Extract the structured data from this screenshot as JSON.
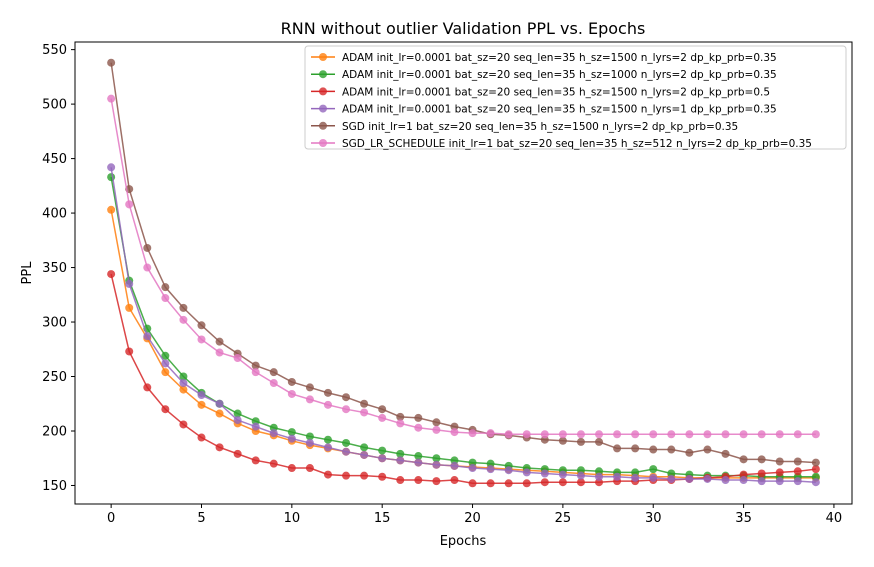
{
  "chart_data": {
    "type": "line",
    "title": "RNN without outlier Validation PPL vs. Epochs",
    "xlabel": "Epochs",
    "ylabel": "PPL",
    "xlim": [
      -2,
      41
    ],
    "ylim": [
      133,
      557
    ],
    "xticks": [
      0,
      5,
      10,
      15,
      20,
      25,
      30,
      35,
      40
    ],
    "yticks": [
      150,
      200,
      250,
      300,
      350,
      400,
      450,
      500,
      550
    ],
    "grid": false,
    "legend_position": "top-right",
    "series": [
      {
        "name": "ADAM init_lr=0.0001 bat_sz=20 seq_len=35 h_sz=1500 n_lyrs=2 dp_kp_prb=0.35",
        "color": "#ff7f0e",
        "values": [
          403,
          313,
          285,
          254,
          238,
          224,
          216,
          207,
          200,
          196,
          191,
          187,
          184,
          181,
          178,
          175,
          173,
          171,
          169,
          168,
          167,
          166,
          165,
          164,
          163,
          162,
          161,
          160,
          160,
          159,
          158,
          158,
          157,
          157,
          157,
          157,
          157,
          157,
          157,
          157
        ]
      },
      {
        "name": "ADAM init_lr=0.0001 bat_sz=20 seq_len=35 h_sz=1000 n_lyrs=2 dp_kp_prb=0.35",
        "color": "#2ca02c",
        "values": [
          433,
          338,
          294,
          269,
          250,
          235,
          225,
          216,
          209,
          203,
          199,
          195,
          192,
          189,
          185,
          182,
          179,
          177,
          175,
          173,
          171,
          170,
          168,
          166,
          165,
          164,
          164,
          163,
          162,
          162,
          165,
          161,
          160,
          159,
          159,
          159,
          158,
          158,
          158,
          158
        ]
      },
      {
        "name": "ADAM init_lr=0.0001 bat_sz=20 seq_len=35 h_sz=1500 n_lyrs=2 dp_kp_prb=0.5",
        "color": "#d62728",
        "values": [
          344,
          273,
          240,
          220,
          206,
          194,
          185,
          179,
          173,
          170,
          166,
          166,
          160,
          159,
          159,
          158,
          155,
          155,
          154,
          155,
          152,
          152,
          152,
          152,
          153,
          153,
          153,
          153,
          154,
          154,
          155,
          155,
          156,
          157,
          158,
          160,
          161,
          162,
          163,
          165
        ]
      },
      {
        "name": "ADAM init_lr=0.0001 bat_sz=20 seq_len=35 h_sz=1500 n_lyrs=1 dp_kp_prb=0.35",
        "color": "#9467bd",
        "values": [
          442,
          335,
          287,
          262,
          244,
          233,
          225,
          210,
          204,
          198,
          193,
          189,
          185,
          181,
          178,
          175,
          173,
          171,
          169,
          168,
          166,
          165,
          164,
          162,
          161,
          160,
          159,
          158,
          158,
          157,
          157,
          156,
          156,
          156,
          155,
          155,
          154,
          154,
          154,
          153
        ]
      },
      {
        "name": "SGD init_lr=1 bat_sz=20 seq_len=35 h_sz=1500 n_lyrs=2 dp_kp_prb=0.35",
        "color": "#8c564b",
        "values": [
          538,
          422,
          368,
          332,
          313,
          297,
          282,
          271,
          260,
          254,
          245,
          240,
          235,
          231,
          225,
          220,
          213,
          212,
          208,
          204,
          201,
          197,
          196,
          194,
          192,
          191,
          190,
          190,
          184,
          184,
          183,
          183,
          180,
          183,
          179,
          174,
          174,
          172,
          172,
          171
        ]
      },
      {
        "name": "SGD_LR_SCHEDULE init_lr=1 bat_sz=20 seq_len=35 h_sz=512 n_lyrs=2 dp_kp_prb=0.35",
        "color": "#e377c2",
        "values": [
          505,
          408,
          350,
          322,
          302,
          284,
          272,
          267,
          254,
          244,
          234,
          229,
          224,
          220,
          217,
          212,
          207,
          203,
          201,
          199,
          198,
          198,
          197,
          197,
          197,
          197,
          197,
          197,
          197,
          197,
          197,
          197,
          197,
          197,
          197,
          197,
          197,
          197,
          197,
          197
        ]
      }
    ]
  }
}
